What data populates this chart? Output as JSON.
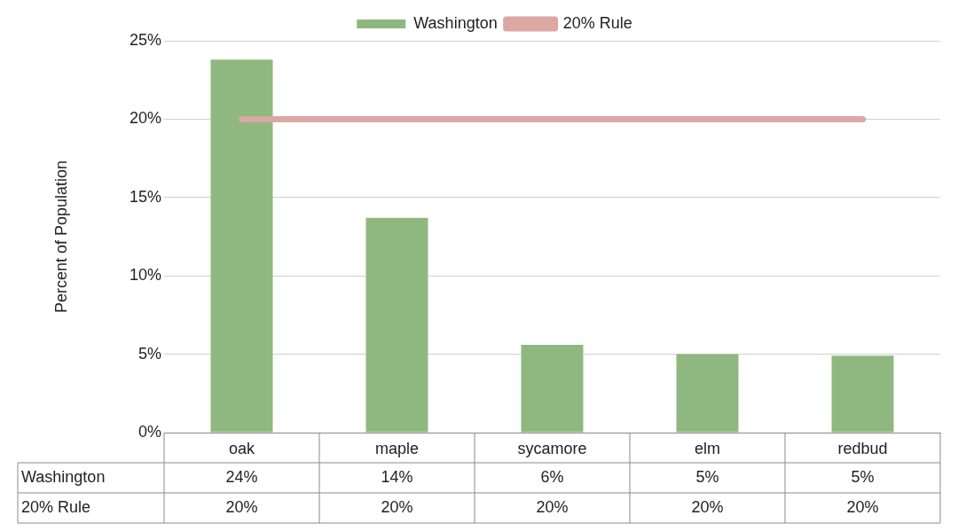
{
  "chart_data": {
    "type": "bar",
    "categories": [
      "oak",
      "maple",
      "sycamore",
      "elm",
      "redbud"
    ],
    "series": [
      {
        "name": "Washington",
        "color": "#8fb880",
        "values": [
          23.8,
          13.7,
          5.6,
          5.0,
          4.9
        ],
        "value_labels": [
          "24%",
          "14%",
          "6%",
          "5%",
          "5%"
        ]
      },
      {
        "name": "20% Rule",
        "type": "line",
        "color": "#dba8a4",
        "values": [
          20,
          20,
          20,
          20,
          20
        ],
        "value_labels": [
          "20%",
          "20%",
          "20%",
          "20%",
          "20%"
        ]
      }
    ],
    "ylabel": "Percent of Population",
    "ylim": [
      0,
      25
    ],
    "yticks": [
      {
        "value": 0,
        "label": "0%"
      },
      {
        "value": 5,
        "label": "5%"
      },
      {
        "value": 10,
        "label": "10%"
      },
      {
        "value": 15,
        "label": "15%"
      },
      {
        "value": 20,
        "label": "20%"
      },
      {
        "value": 25,
        "label": "25%"
      }
    ],
    "grid": "y",
    "legend": "top",
    "marker": "none",
    "line_style": "solid"
  }
}
